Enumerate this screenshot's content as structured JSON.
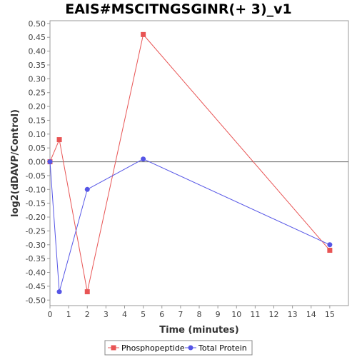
{
  "chart_data": {
    "type": "line",
    "title": "EAIS#MSCITNGSGINR(+ 3)_v1",
    "xlabel": "Time (minutes)",
    "ylabel": "log2(dDAVP/Control)",
    "xlim": [
      0,
      16
    ],
    "ylim": [
      -0.52,
      0.51
    ],
    "x_ticks": [
      0,
      1,
      2,
      3,
      4,
      5,
      6,
      7,
      8,
      9,
      10,
      11,
      12,
      13,
      14,
      15
    ],
    "y_ticks": [
      0.5,
      0.45,
      0.4,
      0.35,
      0.3,
      0.25,
      0.2,
      0.15,
      0.1,
      0.05,
      0.0,
      -0.05,
      -0.1,
      -0.15,
      -0.2,
      -0.25,
      -0.3,
      -0.35,
      -0.4,
      -0.45,
      -0.5
    ],
    "y_tick_labels": [
      "0.50",
      "0.45",
      "0.40",
      "0.35",
      "0.30",
      "0.25",
      "0.20",
      "0.15",
      "0.10",
      "0.05",
      "0.00",
      "-0.05",
      "-0.10",
      "-0.15",
      "-0.20",
      "-0.25",
      "-0.30",
      "-0.35",
      "-0.40",
      "-0.45",
      "-0.50"
    ],
    "grid": false,
    "zero_line": true,
    "legend_position": "bottom",
    "series": [
      {
        "name": "Phosphopeptide",
        "color": "#e85454",
        "marker": "square",
        "x": [
          0,
          0.5,
          2,
          5,
          15
        ],
        "y": [
          0.0,
          0.08,
          -0.47,
          0.46,
          -0.32
        ]
      },
      {
        "name": "Total Protein",
        "color": "#5555e6",
        "marker": "circle",
        "x": [
          0,
          0.5,
          2,
          5,
          15
        ],
        "y": [
          0.0,
          -0.47,
          -0.1,
          0.01,
          -0.3
        ]
      }
    ]
  }
}
